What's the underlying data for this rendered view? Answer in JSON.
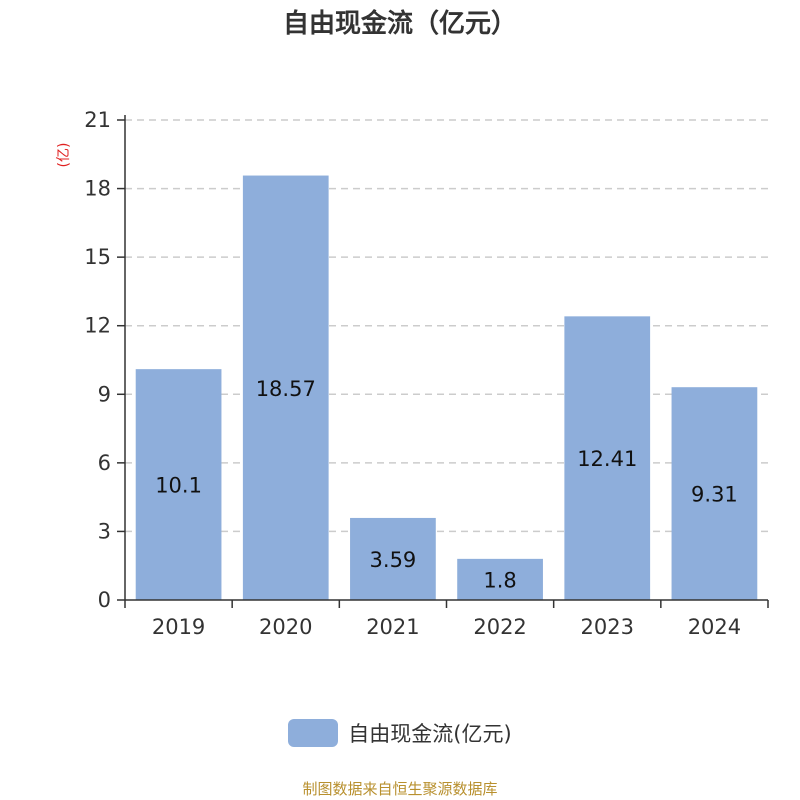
{
  "title": "自由现金流（亿元）",
  "footer": "制图数据来自恒生聚源数据库",
  "colors": {
    "bar": "#8eaedb",
    "unit": "#e02020",
    "grid": "#cccccc",
    "axis": "#333333"
  },
  "chart_data": {
    "type": "bar",
    "title": "自由现金流（亿元）",
    "unit_label": "(亿)",
    "categories": [
      "2019",
      "2020",
      "2021",
      "2022",
      "2023",
      "2024"
    ],
    "series": [
      {
        "name": "自由现金流(亿元)",
        "values": [
          10.1,
          18.57,
          3.59,
          1.8,
          12.41,
          9.31
        ]
      }
    ],
    "data_labels": [
      "10.1",
      "18.57",
      "3.59",
      "1.8",
      "12.41",
      "9.31"
    ],
    "yticks": [
      0,
      3,
      6,
      9,
      12,
      15,
      18,
      21
    ],
    "ylim": [
      0,
      21
    ],
    "grid": true,
    "legend": "bottom-center"
  }
}
